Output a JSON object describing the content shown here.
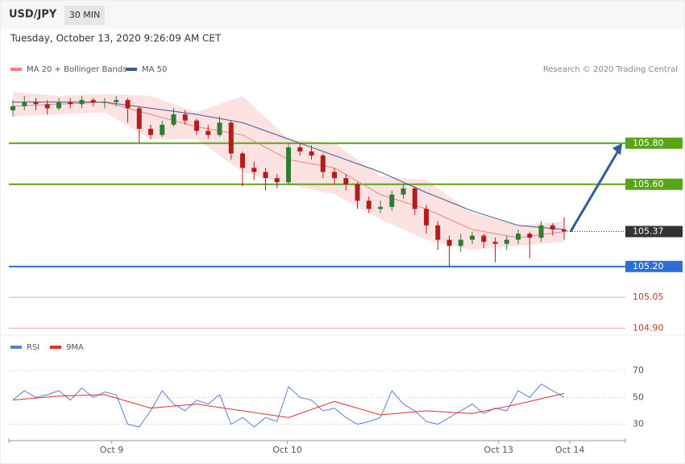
{
  "header": {
    "symbol": "USD/JPY",
    "interval": "30 MIN",
    "timestamp": "Tuesday, October 13, 2020 9:26:09 AM CET",
    "credit": "Research © 2020 Trading Central"
  },
  "chart_data": [
    {
      "type": "candlestick",
      "open": [
        105.96,
        105.98,
        106.0,
        105.99,
        105.97,
        106.0,
        105.99,
        106.01,
        106.0,
        106.0,
        106.01,
        105.97,
        105.87,
        105.84,
        105.89,
        105.94,
        105.91,
        105.86,
        105.84,
        105.9,
        105.75,
        105.68,
        105.66,
        105.63,
        105.61,
        105.78,
        105.76,
        105.74,
        105.66,
        105.63,
        105.6,
        105.52,
        105.48,
        105.49,
        105.55,
        105.58,
        105.48,
        105.4,
        105.33,
        105.3,
        105.33,
        105.35,
        105.32,
        105.31,
        105.33,
        105.36,
        105.34,
        105.4,
        105.38
      ],
      "high": [
        106.01,
        106.03,
        106.02,
        106.01,
        106.02,
        106.02,
        106.03,
        106.02,
        106.02,
        106.03,
        106.02,
        105.98,
        105.89,
        105.91,
        105.97,
        105.96,
        105.92,
        105.89,
        105.93,
        105.91,
        105.76,
        105.71,
        105.68,
        105.65,
        105.8,
        105.8,
        105.79,
        105.75,
        105.68,
        105.65,
        105.61,
        105.54,
        105.52,
        105.57,
        105.6,
        105.59,
        105.5,
        105.42,
        105.35,
        105.36,
        105.37,
        105.36,
        105.34,
        105.35,
        105.38,
        105.37,
        105.42,
        105.41,
        105.44
      ],
      "low": [
        105.93,
        105.96,
        105.96,
        105.94,
        105.96,
        105.97,
        105.97,
        105.98,
        105.97,
        105.98,
        105.9,
        105.8,
        105.82,
        105.83,
        105.88,
        105.89,
        105.84,
        105.82,
        105.83,
        105.72,
        105.59,
        105.62,
        105.57,
        105.58,
        105.6,
        105.74,
        105.72,
        105.63,
        105.6,
        105.57,
        105.48,
        105.46,
        105.46,
        105.47,
        105.53,
        105.45,
        105.36,
        105.28,
        105.2,
        105.27,
        105.31,
        105.29,
        105.22,
        105.28,
        105.31,
        105.24,
        105.32,
        105.35,
        105.33
      ],
      "close": [
        105.98,
        106.0,
        105.99,
        105.97,
        106.0,
        105.99,
        106.01,
        106.0,
        106.0,
        106.01,
        105.97,
        105.87,
        105.84,
        105.89,
        105.94,
        105.91,
        105.86,
        105.84,
        105.9,
        105.75,
        105.68,
        105.66,
        105.63,
        105.61,
        105.78,
        105.76,
        105.74,
        105.66,
        105.63,
        105.6,
        105.52,
        105.48,
        105.49,
        105.55,
        105.58,
        105.48,
        105.4,
        105.33,
        105.3,
        105.33,
        105.35,
        105.32,
        105.31,
        105.33,
        105.36,
        105.34,
        105.4,
        105.38,
        105.37
      ],
      "up_color": "#2e7d32",
      "down_color": "#b71c1c",
      "indicators": [
        {
          "name": "MA 20 + Bollinger Bands",
          "color": "#f08080",
          "band_color": "#fde2e2",
          "x": [
            0,
            4,
            8,
            12,
            16,
            20,
            24,
            28,
            32,
            36,
            40,
            44,
            48
          ],
          "values": [
            105.98,
            105.99,
            106.0,
            105.94,
            105.88,
            105.84,
            105.72,
            105.68,
            105.55,
            105.48,
            105.38,
            105.34,
            105.37
          ],
          "upper": [
            106.05,
            106.03,
            106.04,
            106.03,
            105.95,
            106.03,
            105.82,
            105.8,
            105.64,
            105.62,
            105.46,
            105.4,
            105.42
          ],
          "lower": [
            105.93,
            105.94,
            105.95,
            105.82,
            105.82,
            105.66,
            105.6,
            105.55,
            105.43,
            105.33,
            105.28,
            105.3,
            105.32
          ]
        },
        {
          "name": "MA 50",
          "color": "#3d5a98",
          "x": [
            0,
            4,
            8,
            12,
            16,
            20,
            24,
            28,
            32,
            36,
            40,
            44,
            48
          ],
          "values": [
            106.0,
            106.0,
            106.0,
            105.97,
            105.94,
            105.9,
            105.82,
            105.74,
            105.66,
            105.56,
            105.47,
            105.4,
            105.38
          ]
        }
      ],
      "levels": [
        {
          "value": 105.8,
          "label": "105.80",
          "color": "#58a618",
          "label_box": true
        },
        {
          "value": 105.6,
          "label": "105.60",
          "color": "#58a618",
          "label_box": true
        },
        {
          "value": 105.2,
          "label": "105.20",
          "color": "#2d6fd6",
          "label_box": true
        },
        {
          "value": 105.05,
          "label": "105.05",
          "color": "#f4a0a0",
          "label_box": false
        },
        {
          "value": 104.9,
          "label": "104.90",
          "color": "#f4a0a0",
          "label_box": false
        }
      ],
      "last_price": 105.37,
      "xlim": [
        -0.35,
        53.33
      ],
      "ylim": [
        104.87,
        106.34
      ]
    },
    {
      "type": "line",
      "series": [
        {
          "name": "RSI",
          "color": "#5b7fd6",
          "x": [
            0,
            1,
            2,
            3,
            4,
            5,
            6,
            7,
            8,
            9,
            10,
            11,
            12,
            13,
            14,
            15,
            16,
            17,
            18,
            19,
            20,
            21,
            22,
            23,
            24,
            25,
            26,
            27,
            28,
            29,
            30,
            31,
            32,
            33,
            34,
            35,
            36,
            37,
            38,
            39,
            40,
            41,
            42,
            43,
            44,
            45,
            46,
            47,
            48
          ],
          "values": [
            48,
            55,
            50,
            52,
            55,
            48,
            57,
            50,
            54,
            52,
            30,
            28,
            40,
            55,
            45,
            40,
            48,
            45,
            52,
            30,
            35,
            28,
            35,
            32,
            58,
            50,
            48,
            40,
            42,
            35,
            30,
            32,
            35,
            55,
            45,
            40,
            32,
            30,
            35,
            40,
            45,
            38,
            42,
            40,
            55,
            50,
            60,
            55,
            50
          ]
        },
        {
          "name": "9MA",
          "color": "#e03030",
          "x": [
            0,
            4,
            8,
            12,
            16,
            20,
            24,
            28,
            32,
            36,
            40,
            44,
            48
          ],
          "values": [
            48,
            51,
            52,
            42,
            45,
            40,
            35,
            47,
            37,
            40,
            38,
            45,
            53
          ]
        }
      ],
      "xlim": [
        -0.35,
        53.33
      ],
      "ylim": [
        19,
        94
      ],
      "yticks": [
        70,
        50,
        30
      ],
      "xticks": [
        {
          "value": 8.6,
          "label": "Oct 9"
        },
        {
          "value": 23.9,
          "label": "Oct 10"
        },
        {
          "value": 42.3,
          "label": "Oct 13"
        },
        {
          "value": 48.5,
          "label": "Oct 14"
        }
      ]
    }
  ]
}
